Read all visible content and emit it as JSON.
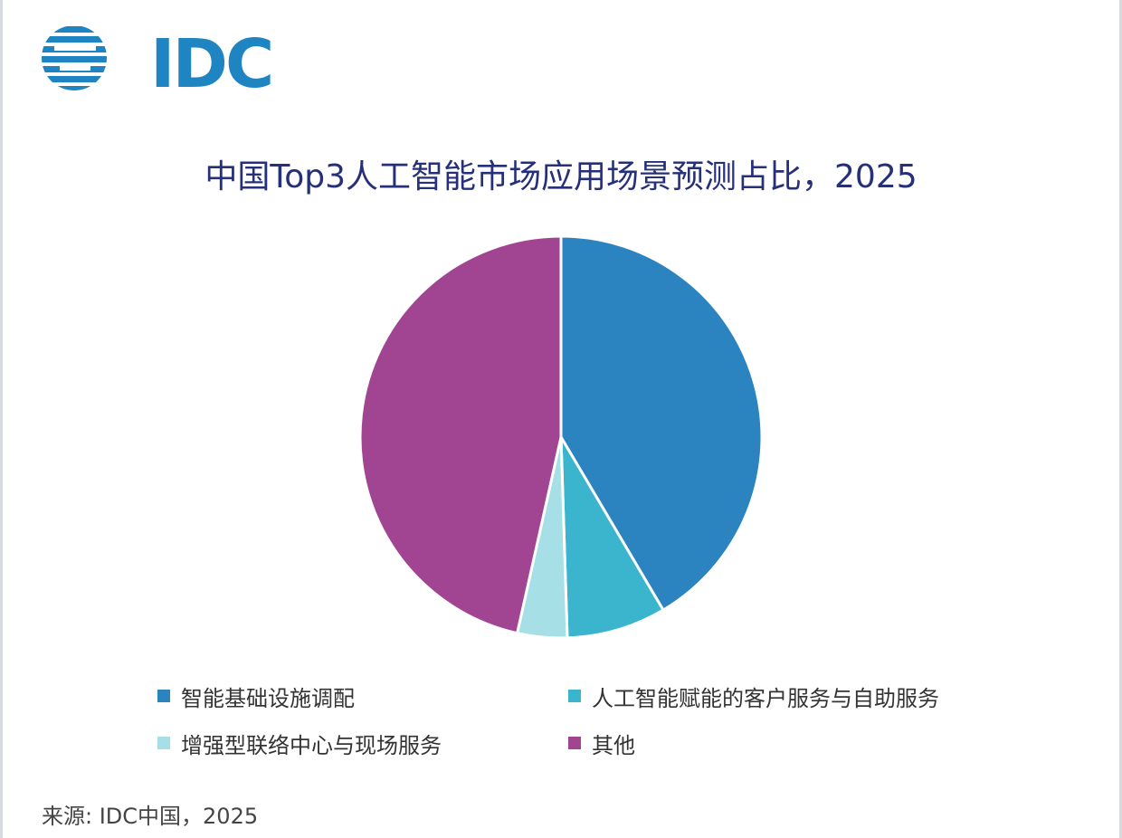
{
  "logo": {
    "text": "IDC",
    "color": "#1f84c2"
  },
  "chart_data": {
    "type": "pie",
    "title": "中国Top3人工智能市场应用场景预测占比，2025",
    "slices": [
      {
        "label": "智能基础设施调配",
        "value": 41.5,
        "color": "#2b83c0"
      },
      {
        "label": "人工智能赋能的客户服务与自助服务",
        "value": 8.0,
        "color": "#3bb5cd"
      },
      {
        "label": "增强型联络中心与现场服务",
        "value": 4.0,
        "color": "#a6e0e6"
      },
      {
        "label": "其他",
        "value": 46.5,
        "color": "#a14592"
      }
    ],
    "legend_position": "bottom"
  },
  "source": "来源: IDC中国，2025"
}
